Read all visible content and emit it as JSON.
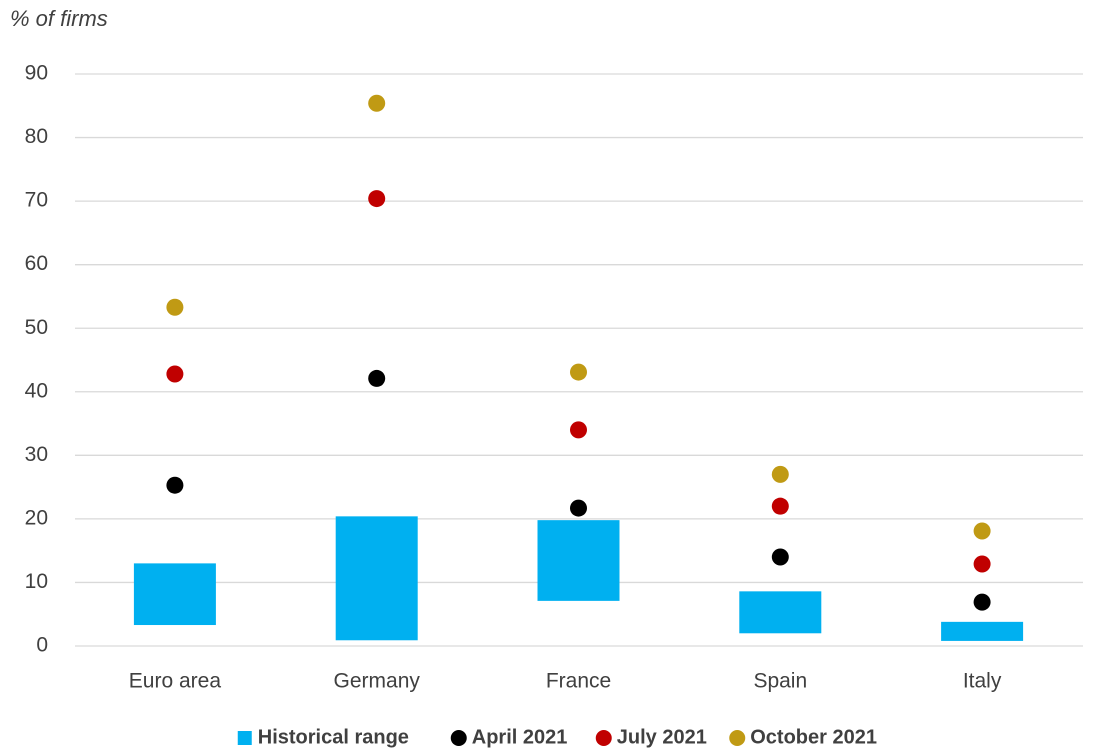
{
  "chart_data": {
    "type": "range_dot",
    "y_label": "% of firms",
    "categories": [
      "Euro area",
      "Germany",
      "France",
      "Spain",
      "Italy"
    ],
    "series": [
      {
        "name": "Historical range",
        "color": "#00b0f0",
        "low": [
          3.3,
          0.9,
          7.1,
          2.0,
          0.8
        ],
        "high": [
          13.0,
          20.4,
          19.8,
          8.6,
          3.8
        ]
      },
      {
        "name": "April 2021",
        "color": "#000000",
        "values": [
          25.3,
          42.1,
          21.7,
          14.0,
          6.9
        ]
      },
      {
        "name": "July 2021",
        "color": "#c00000",
        "values": [
          42.8,
          70.4,
          34.0,
          22.0,
          12.9
        ]
      },
      {
        "name": "October 2021",
        "color": "#c09a14",
        "values": [
          53.3,
          85.4,
          43.1,
          27.0,
          18.1
        ]
      }
    ],
    "ylim": [
      0,
      90
    ],
    "yticks": [
      0,
      10,
      20,
      30,
      40,
      50,
      60,
      70,
      80,
      90
    ],
    "grid": true,
    "legend": "bottom"
  }
}
